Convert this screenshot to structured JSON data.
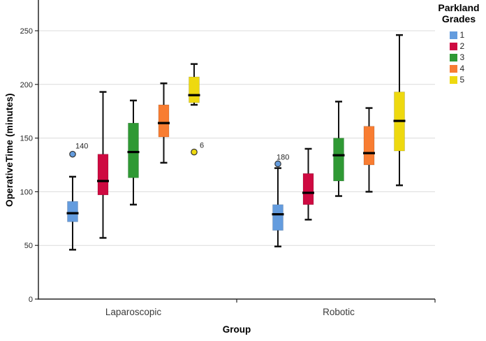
{
  "chart_data": {
    "type": "boxplot",
    "title": "",
    "xlabel": "Group",
    "ylabel": "OperativeTime (minutes)",
    "ylim": [
      0,
      278
    ],
    "yticks": [
      0,
      50,
      100,
      150,
      200,
      250
    ],
    "grid": "horizontal-light",
    "legend_position": "top-right",
    "legend_title_lines": [
      "Parkland",
      "Grades"
    ],
    "groups": [
      "Laparoscopic",
      "Robotic"
    ],
    "grades": [
      "1",
      "2",
      "3",
      "4",
      "5"
    ],
    "colors": {
      "1": "#649CDE",
      "2": "#CE0A41",
      "3": "#2F9934",
      "4": "#F87D32",
      "5": "#EED90F"
    },
    "axis_color": "#262626",
    "gridline_color": "#DCDCDC",
    "whisker_color": "#111111",
    "median_color": "#000000",
    "boxes": [
      {
        "group": "Laparoscopic",
        "grade": "1",
        "low": 46,
        "q1": 72,
        "median": 80,
        "q3": 91,
        "high": 114,
        "outliers": [
          {
            "value": 135,
            "label": "140",
            "dx": 4,
            "dy": -8
          }
        ]
      },
      {
        "group": "Laparoscopic",
        "grade": "2",
        "low": 57,
        "q1": 97,
        "median": 110,
        "q3": 135,
        "high": 193,
        "outliers": []
      },
      {
        "group": "Laparoscopic",
        "grade": "3",
        "low": 88,
        "q1": 113,
        "median": 137,
        "q3": 164,
        "high": 185,
        "outliers": []
      },
      {
        "group": "Laparoscopic",
        "grade": "4",
        "low": 127,
        "q1": 151,
        "median": 164,
        "q3": 181,
        "high": 201,
        "outliers": []
      },
      {
        "group": "Laparoscopic",
        "grade": "5",
        "low": 181,
        "q1": 183,
        "median": 190,
        "q3": 207,
        "high": 219,
        "outliers": [
          {
            "value": 137,
            "label": "6",
            "dx": 8,
            "dy": -6
          }
        ]
      },
      {
        "group": "Robotic",
        "grade": "1",
        "low": 49,
        "q1": 64,
        "median": 79,
        "q3": 88,
        "high": 122,
        "outliers": [
          {
            "value": 126,
            "label": "180",
            "dx": -2,
            "dy": -6
          }
        ]
      },
      {
        "group": "Robotic",
        "grade": "2",
        "low": 74,
        "q1": 88,
        "median": 99,
        "q3": 117,
        "high": 140,
        "outliers": []
      },
      {
        "group": "Robotic",
        "grade": "3",
        "low": 96,
        "q1": 110,
        "median": 134,
        "q3": 150,
        "high": 184,
        "outliers": []
      },
      {
        "group": "Robotic",
        "grade": "4",
        "low": 100,
        "q1": 125,
        "median": 136,
        "q3": 161,
        "high": 178,
        "outliers": []
      },
      {
        "group": "Robotic",
        "grade": "5",
        "low": 106,
        "q1": 138,
        "median": 166,
        "q3": 193,
        "high": 246,
        "outliers": []
      }
    ]
  }
}
